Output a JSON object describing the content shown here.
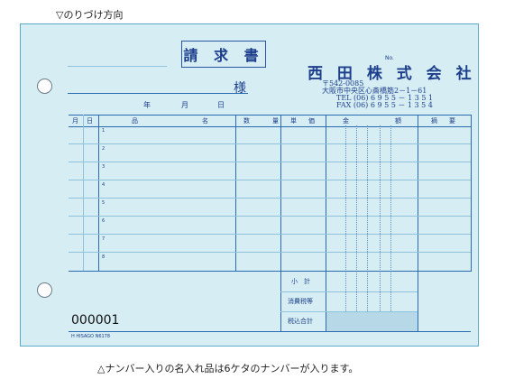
{
  "notes": {
    "top": "▽のりづけ方向",
    "bottom": "△ナンバー入りの名入れ品は6ケタのナンバーが入ります。"
  },
  "form": {
    "title": "請 求 書",
    "recipient_suffix": "様",
    "date_labels": [
      "年",
      "月",
      "日"
    ],
    "number_label": "No.",
    "company": "西 田 株 式 会 社",
    "address_lines": [
      "〒542-0085",
      "大阪市中央区心斎橋筋2－1－61",
      "TEL (06) 6 9 5 5 － 1 3 5 1",
      "FAX (06) 6 9 5 5 － 1 3 5 4"
    ],
    "columns": {
      "month": "月",
      "day": "日",
      "item": "品",
      "name": "名",
      "qty1": "数",
      "qty2": "量",
      "price1": "単",
      "price2": "価",
      "amount1": "金",
      "amount2": "額",
      "remarks1": "摘",
      "remarks2": "要"
    },
    "row_numbers": [
      "1",
      "2",
      "3",
      "4",
      "5",
      "6",
      "7",
      "8"
    ],
    "summary": {
      "subtotal": "小　計",
      "tax": "消費税等",
      "total": "税込合計"
    },
    "serial": "000001",
    "brand": "H HISAGO N6178"
  },
  "colors": {
    "sheet": "#d5edf3",
    "ink": "#1d3f8c",
    "border": "#5aa9c6"
  }
}
